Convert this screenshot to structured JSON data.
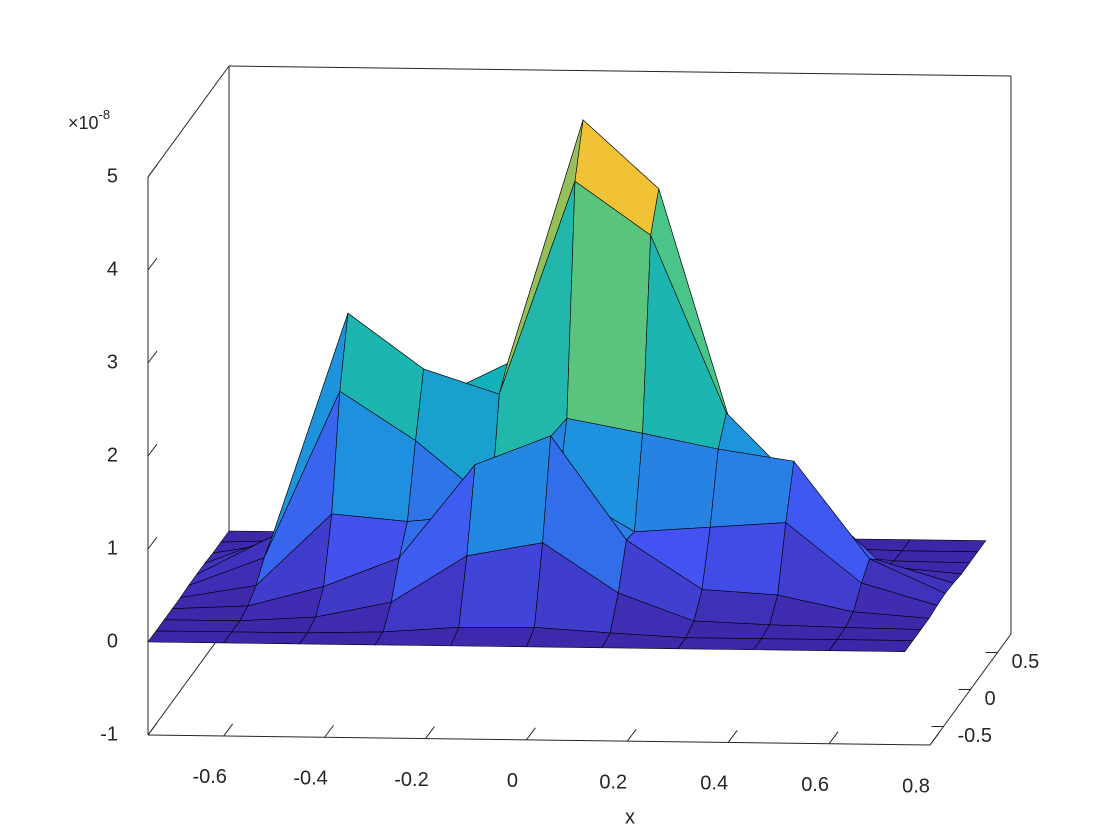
{
  "chart_data": {
    "type": "surface",
    "xlabel": "x",
    "zscale_label": {
      "base": "×10",
      "exponent": "-8"
    },
    "xlim": [
      -0.75,
      0.8
    ],
    "ylim": [
      -0.75,
      0.75
    ],
    "zlim": [
      -1,
      5
    ],
    "xticks": [
      -0.6,
      -0.4,
      -0.2,
      0,
      0.2,
      0.4,
      0.6,
      0.8
    ],
    "yticks": [
      -0.5,
      0,
      0.5
    ],
    "zticks": [
      -1,
      0,
      1,
      2,
      3,
      4,
      5
    ],
    "colormap": [
      "#3e26a8",
      "#4354f3",
      "#1e91df",
      "#13b2b9",
      "#48c48a",
      "#a5be4e",
      "#f0b93b",
      "#f9fb15"
    ],
    "x": [
      -0.75,
      -0.6,
      -0.45,
      -0.3,
      -0.15,
      0,
      0.15,
      0.3,
      0.45,
      0.6,
      0.75
    ],
    "y": [
      -0.75,
      -0.6,
      -0.45,
      -0.3,
      -0.15,
      0,
      0.15,
      0.3,
      0.45,
      0.6,
      0.75
    ],
    "z": [
      [
        0,
        0,
        0,
        0,
        0,
        0,
        0,
        0,
        0,
        0,
        0
      ],
      [
        0,
        0,
        0,
        0.02,
        0.08,
        0.09,
        0.04,
        0,
        0,
        0,
        0
      ],
      [
        0,
        0,
        0.05,
        0.22,
        0.73,
        0.88,
        0.35,
        0.06,
        0.03,
        0.01,
        0
      ],
      [
        0,
        0.04,
        0.26,
        0.58,
        1.59,
        1.91,
        0.8,
        0.28,
        0.23,
        0.06,
        0
      ],
      [
        0,
        0.14,
        0.92,
        0.85,
        0.93,
        1.24,
        0.77,
        0.83,
        0.89,
        0.25,
        0.02
      ],
      [
        0.01,
        0.32,
        2.12,
        1.6,
        0.94,
        1.86,
        1.71,
        1.55,
        1.43,
        0.39,
        0.03
      ],
      [
        0.01,
        0.43,
        2.84,
        2.25,
        1.99,
        4.29,
        3.72,
        1.82,
        1.01,
        0.26,
        0.02
      ],
      [
        0.01,
        0.32,
        2.13,
        1.8,
        2.2,
        4.83,
        4.1,
        1.45,
        0.37,
        0.07,
        0
      ],
      [
        0,
        0.14,
        0.91,
        0.8,
        1.15,
        2.57,
        2.16,
        0.69,
        0.1,
        0.01,
        0
      ],
      [
        0,
        0.03,
        0.23,
        0.2,
        0.29,
        0.65,
        0.55,
        0.17,
        0.02,
        0,
        0
      ],
      [
        0,
        0,
        0.03,
        0.03,
        0.03,
        0.08,
        0.06,
        0.02,
        0,
        0,
        0
      ]
    ]
  }
}
